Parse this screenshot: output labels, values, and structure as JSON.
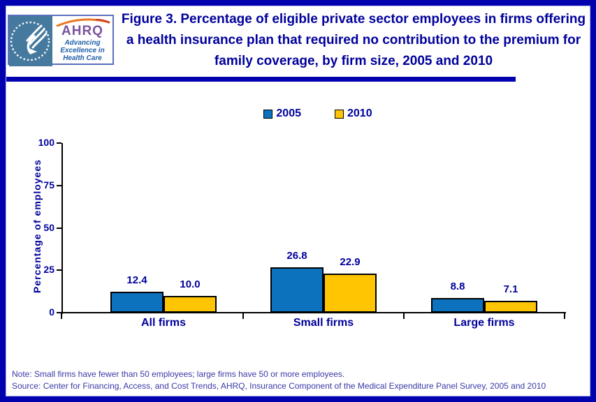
{
  "logo": {
    "seal": "hhs-eagle-seal",
    "ahrq_acronym": "AHRQ",
    "tagline": "Advancing\nExcellence in\nHealth Care",
    "colors": {
      "seal_bg": "#45799D",
      "ahrq_purple": "#7B549E",
      "swoosh_orange": "#E87722",
      "tagline_blue": "#1F5FA9"
    }
  },
  "title": "Figure 3. Percentage of eligible private sector employees in firms offering a health insurance plan that required no contribution to the premium for family coverage, by firm size, 2005 and 2010",
  "chart_data": {
    "type": "bar",
    "categories": [
      "All firms",
      "Small firms",
      "Large firms"
    ],
    "series": [
      {
        "name": "2005",
        "color": "#0D72BE",
        "values": [
          12.4,
          26.8,
          8.8
        ]
      },
      {
        "name": "2010",
        "color": "#FFC402",
        "values": [
          10.0,
          22.9,
          7.1
        ]
      }
    ],
    "ylabel": "Percentage of employees",
    "ylim": [
      0,
      100
    ],
    "yticks": [
      0,
      25,
      50,
      75,
      100
    ],
    "grid": false,
    "legend_position": "top-center",
    "value_labels": true,
    "value_label_format": "0.1f"
  },
  "notes": {
    "note": "Note: Small firms have fewer than 50 employees; large firms have 50 or more employees.",
    "source": "Source: Center for Financing, Access, and Cost Trends, AHRQ, Insurance Component of the Medical Expenditure Panel Survey, 2005 and 2010"
  },
  "colors": {
    "frame_navy": "#0101B0",
    "text_navy": "#00009C",
    "note_indigo": "#3939A8"
  }
}
